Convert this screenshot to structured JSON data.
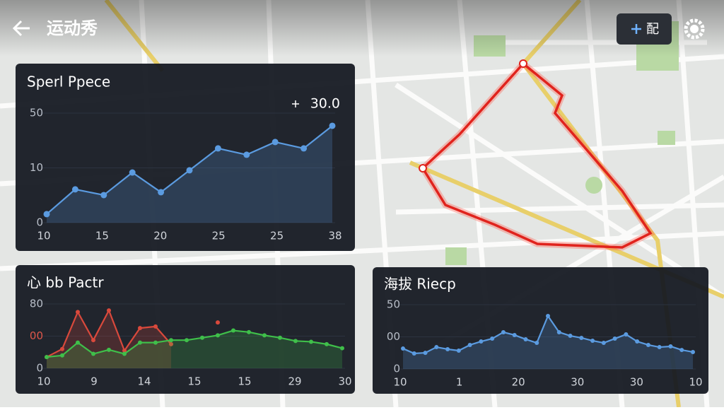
{
  "header": {
    "title": "运动秀",
    "button": "配"
  },
  "panels": [
    {
      "title": "Sperl Ppece",
      "badge": "30.0",
      "ylim": [
        0,
        50
      ],
      "y_labels": [
        "50",
        "10",
        "0"
      ],
      "x_labels": [
        "10",
        "15",
        "20",
        "25",
        "25",
        "38"
      ],
      "series": [
        {
          "color": "#5b9be0",
          "values": [
            3.9,
            15.2,
            12.6,
            22.9,
            13.9,
            23.9,
            33.9,
            31,
            36.8,
            33.9,
            44.2
          ]
        }
      ]
    },
    {
      "title": "心 bb Pactr",
      "ylim": [
        0,
        80
      ],
      "y_labels": [
        "80",
        "00",
        "0"
      ],
      "x_labels": [
        "10",
        "9",
        "14",
        "15",
        "15",
        "29",
        "30"
      ],
      "series": [
        {
          "color": "#d9493c",
          "values": [
            14,
            24,
            70,
            35,
            72,
            22,
            50,
            52,
            30,
            null,
            null,
            57,
            null,
            null,
            null,
            null,
            null,
            null,
            null,
            null
          ]
        },
        {
          "color": "#3fbf4a",
          "values": [
            14,
            16,
            32,
            18,
            23,
            18,
            32,
            32,
            35,
            35,
            38,
            41,
            47,
            45,
            41,
            38,
            34,
            33,
            30,
            25
          ]
        }
      ]
    },
    {
      "title": "海拔 Riecp",
      "ylim": [
        0,
        50
      ],
      "y_labels": [
        "50",
        "00",
        "0"
      ],
      "x_labels": [
        "10",
        "1",
        "20",
        "30",
        "30",
        "10"
      ],
      "series": [
        {
          "color": "#5b9be0",
          "values": [
            15.9,
            12.1,
            12.6,
            17,
            15.4,
            14.3,
            18.7,
            21.4,
            23.6,
            28.6,
            26.4,
            23.1,
            20.3,
            41.2,
            28.6,
            25.8,
            24.2,
            22,
            20.3,
            23.6,
            26.9,
            21.4,
            18.7,
            17,
            17.6,
            14.8,
            13.2
          ]
        }
      ]
    }
  ]
}
